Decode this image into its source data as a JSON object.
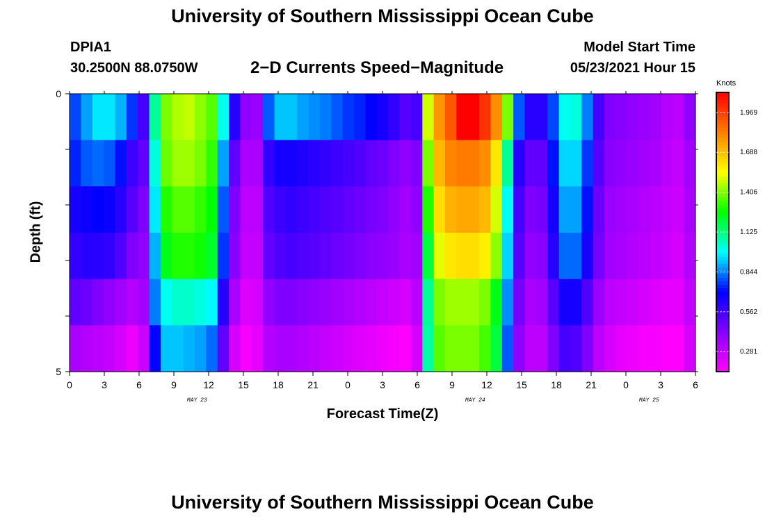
{
  "header": {
    "title": "University of Southern Mississippi Ocean Cube",
    "station_id": "DPIA1",
    "station_coords": "30.2500N  88.0750W",
    "chart_title": "2−D Currents Speed−Magnitude",
    "model_start_label": "Model Start Time",
    "model_start_value": "05/23/2021 Hour 15"
  },
  "footer": {
    "title": "University of Southern Mississippi Ocean Cube"
  },
  "chart_data": {
    "type": "heatmap",
    "title": "2−D Currents Speed−Magnitude",
    "xlabel": "Forecast Time(Z)",
    "ylabel": "Depth (ft)",
    "x_tick_labels": [
      "0",
      "3",
      "6",
      "9",
      "12",
      "15",
      "18",
      "21",
      "0",
      "3",
      "6",
      "9",
      "12",
      "15",
      "18",
      "21",
      "0",
      "3",
      "6"
    ],
    "date_labels": [
      {
        "label": "MAY 23",
        "hour": 11
      },
      {
        "label": "MAY 24",
        "hour": 35
      },
      {
        "label": "MAY 25",
        "hour": 50
      }
    ],
    "y_tick_labels": [
      "0",
      "5"
    ],
    "ylim": [
      0,
      5
    ],
    "xlim_hours": [
      0,
      54
    ],
    "colorbar": {
      "unit": "Knots",
      "tick_labels": [
        "0.281",
        "0.562",
        "0.844",
        "1.125",
        "1.406",
        "1.688",
        "1.969"
      ],
      "range": [
        0.14,
        2.11
      ]
    },
    "depth_rows_ft": [
      0,
      1,
      2,
      3,
      4,
      5
    ],
    "hours": [
      0,
      1,
      2,
      3,
      4,
      5,
      6,
      7,
      8,
      9,
      10,
      11,
      12,
      13,
      14,
      15,
      16,
      17,
      18,
      19,
      20,
      21,
      22,
      23,
      24,
      25,
      26,
      27,
      28,
      29,
      30,
      31,
      32,
      33,
      34,
      35,
      36,
      37,
      38,
      39,
      40,
      41,
      42,
      43,
      44,
      45,
      46,
      47,
      48,
      49,
      50,
      51,
      52,
      53,
      54
    ],
    "speed_knots": [
      [
        0.78,
        0.88,
        0.96,
        0.96,
        0.9,
        0.76,
        0.56,
        1.1,
        1.4,
        1.46,
        1.48,
        1.42,
        1.36,
        1.0,
        0.62,
        0.4,
        0.38,
        0.8,
        0.92,
        0.92,
        0.88,
        0.86,
        0.84,
        0.8,
        0.76,
        0.74,
        0.7,
        0.66,
        0.6,
        0.52,
        0.56,
        1.5,
        1.78,
        1.92,
        2.11,
        2.11,
        2.0,
        1.8,
        1.4,
        0.8,
        0.62,
        0.62,
        0.78,
        1.0,
        1.02,
        0.84,
        0.56,
        0.44,
        0.42,
        0.4,
        0.38,
        0.36,
        0.32,
        0.3,
        0.4
      ],
      [
        0.74,
        0.8,
        0.82,
        0.8,
        0.72,
        0.58,
        0.5,
        1.02,
        1.38,
        1.44,
        1.44,
        1.4,
        1.32,
        0.88,
        0.5,
        0.34,
        0.34,
        0.6,
        0.66,
        0.66,
        0.64,
        0.62,
        0.6,
        0.58,
        0.56,
        0.54,
        0.5,
        0.48,
        0.44,
        0.4,
        0.44,
        1.4,
        1.7,
        1.82,
        1.84,
        1.84,
        1.8,
        1.6,
        1.1,
        0.62,
        0.5,
        0.5,
        0.72,
        0.94,
        0.94,
        0.76,
        0.52,
        0.42,
        0.4,
        0.38,
        0.36,
        0.34,
        0.3,
        0.28,
        0.36
      ],
      [
        0.66,
        0.68,
        0.7,
        0.68,
        0.62,
        0.52,
        0.44,
        0.96,
        1.3,
        1.36,
        1.36,
        1.32,
        1.26,
        0.8,
        0.44,
        0.3,
        0.3,
        0.54,
        0.58,
        0.6,
        0.58,
        0.56,
        0.54,
        0.52,
        0.5,
        0.48,
        0.46,
        0.44,
        0.4,
        0.36,
        0.4,
        1.3,
        1.62,
        1.72,
        1.74,
        1.74,
        1.7,
        1.5,
        1.0,
        0.56,
        0.44,
        0.46,
        0.66,
        0.88,
        0.88,
        0.72,
        0.48,
        0.38,
        0.36,
        0.34,
        0.32,
        0.3,
        0.28,
        0.26,
        0.34
      ],
      [
        0.6,
        0.62,
        0.62,
        0.6,
        0.54,
        0.44,
        0.4,
        0.9,
        1.24,
        1.3,
        1.3,
        1.28,
        1.22,
        0.76,
        0.42,
        0.28,
        0.28,
        0.5,
        0.54,
        0.56,
        0.54,
        0.52,
        0.5,
        0.48,
        0.46,
        0.44,
        0.42,
        0.4,
        0.38,
        0.34,
        0.36,
        1.2,
        1.52,
        1.6,
        1.62,
        1.62,
        1.58,
        1.42,
        0.94,
        0.52,
        0.4,
        0.42,
        0.62,
        0.82,
        0.82,
        0.66,
        0.46,
        0.36,
        0.34,
        0.32,
        0.3,
        0.28,
        0.26,
        0.24,
        0.32
      ],
      [
        0.5,
        0.48,
        0.44,
        0.4,
        0.36,
        0.32,
        0.36,
        0.84,
        1.0,
        1.04,
        1.04,
        1.02,
        0.98,
        0.62,
        0.34,
        0.22,
        0.24,
        0.4,
        0.44,
        0.44,
        0.42,
        0.4,
        0.38,
        0.36,
        0.34,
        0.32,
        0.3,
        0.28,
        0.26,
        0.24,
        0.3,
        1.1,
        1.4,
        1.44,
        1.44,
        1.44,
        1.4,
        1.24,
        0.86,
        0.46,
        0.34,
        0.36,
        0.52,
        0.66,
        0.66,
        0.54,
        0.38,
        0.3,
        0.28,
        0.26,
        0.24,
        0.22,
        0.2,
        0.2,
        0.28
      ],
      [
        0.34,
        0.32,
        0.3,
        0.28,
        0.24,
        0.18,
        0.26,
        0.7,
        0.92,
        0.92,
        0.9,
        0.88,
        0.82,
        0.5,
        0.24,
        0.16,
        0.2,
        0.32,
        0.34,
        0.34,
        0.32,
        0.3,
        0.28,
        0.26,
        0.24,
        0.22,
        0.2,
        0.18,
        0.16,
        0.14,
        0.24,
        1.08,
        1.36,
        1.4,
        1.4,
        1.4,
        1.34,
        1.2,
        0.8,
        0.4,
        0.3,
        0.3,
        0.44,
        0.56,
        0.54,
        0.44,
        0.3,
        0.24,
        0.2,
        0.18,
        0.16,
        0.16,
        0.14,
        0.14,
        0.24
      ]
    ],
    "colorscale": [
      "#ff00ff",
      "#8800ff",
      "#0000ff",
      "#00ffff",
      "#00ff00",
      "#ffff00",
      "#ff8000",
      "#ff0000"
    ]
  }
}
